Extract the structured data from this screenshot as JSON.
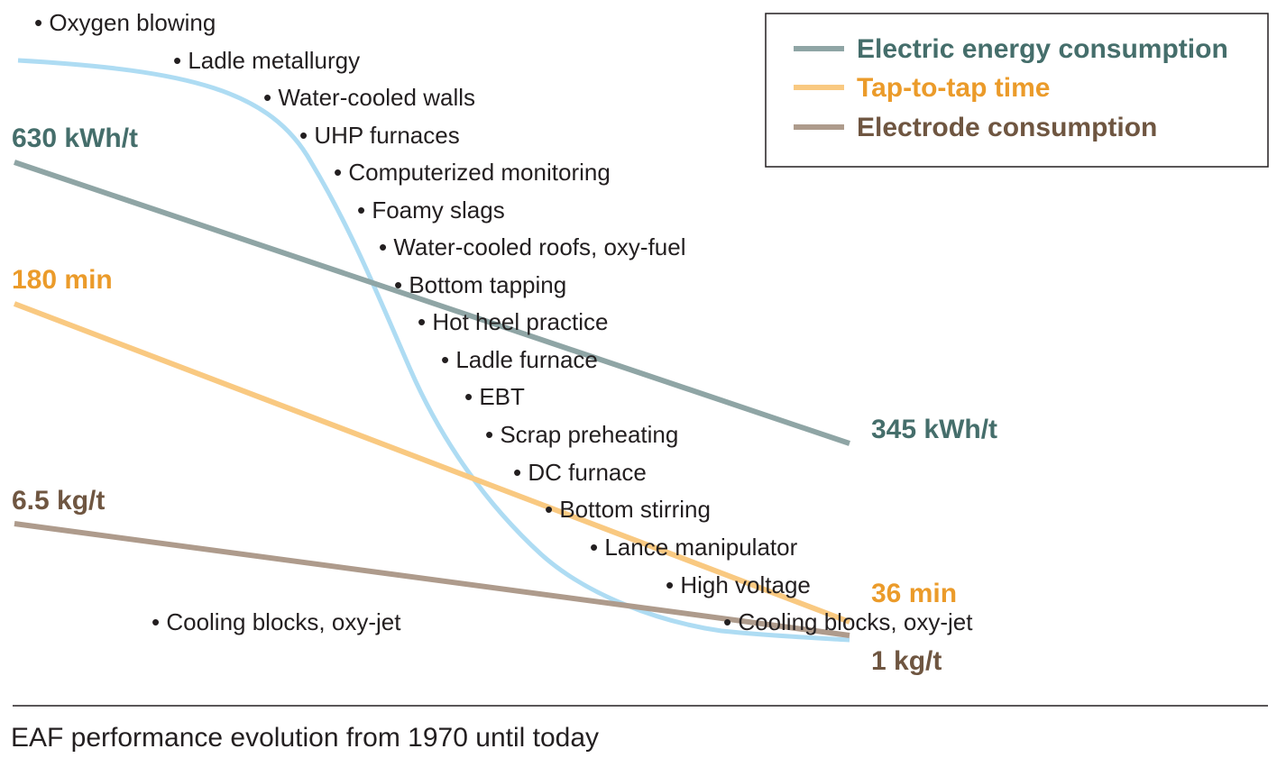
{
  "chart_data": {
    "type": "line",
    "title": "",
    "caption": "EAF performance evolution from 1970 until today",
    "xlabel": "",
    "ylabel": "",
    "grid": false,
    "legend_position": "top-right",
    "series": [
      {
        "name": "Electric energy consumption",
        "color": "#8fa5a5",
        "text_color": "#456e6b",
        "start_label": "630 kWh/t",
        "end_label": "345 kWh/t",
        "start_value": 630,
        "end_value": 345
      },
      {
        "name": "Tap-to-tap time",
        "color": "#f9c981",
        "text_color": "#eb9b2a",
        "start_label": "180 min",
        "end_label": "36 min",
        "start_value": 180,
        "end_value": 36
      },
      {
        "name": "Electrode consumption",
        "color": "#ae9b8c",
        "text_color": "#6f5641",
        "start_label": "6.5 kg/t",
        "end_label": "1 kg/t",
        "start_value": 6.5,
        "end_value": 1
      }
    ],
    "technology_curve": {
      "color": "#aedcf3",
      "milestones": [
        "Oxygen blowing",
        "Ladle metallurgy",
        "Water-cooled walls",
        "UHP furnaces",
        "Computerized monitoring",
        "Foamy slags",
        "Water-cooled roofs, oxy-fuel",
        "Bottom tapping",
        "Hot heel practice",
        "Ladle furnace",
        "EBT",
        "Scrap preheating",
        "DC furnace",
        "Bottom stirring",
        "Lance manipulator",
        "High voltage",
        "Cooling blocks, oxy-jet"
      ],
      "extra_label": "Cooling blocks, oxy-jet"
    }
  }
}
